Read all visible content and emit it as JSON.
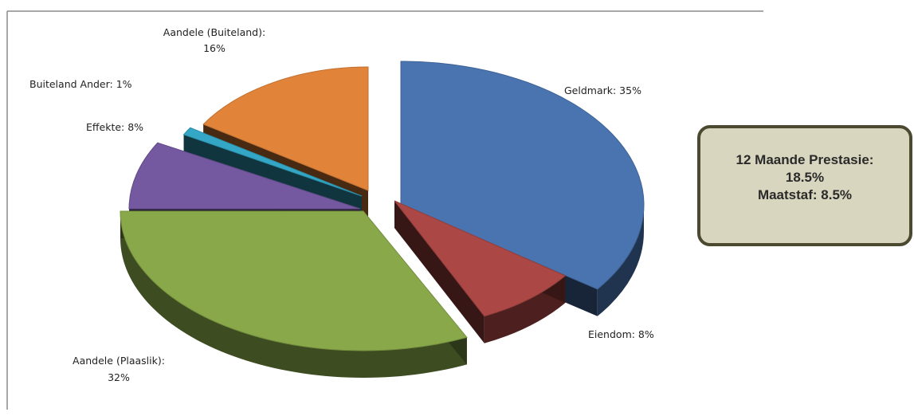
{
  "chart_data": {
    "type": "pie",
    "style": "3d-exploded",
    "slices": [
      {
        "name": "Geldmark",
        "value": 35,
        "label": "Geldmark: 35%",
        "color": "#4a74b0"
      },
      {
        "name": "Eiendom",
        "value": 8,
        "label": "Eiendom: 8%",
        "color": "#ab4845"
      },
      {
        "name": "Aandele (Plaaslik)",
        "value": 32,
        "label": "Aandele (Plaaslik):",
        "label2": "32%",
        "color": "#88a84a"
      },
      {
        "name": "Effekte",
        "value": 8,
        "label": "Effekte: 8%",
        "color": "#7458a0"
      },
      {
        "name": "Buiteland Ander",
        "value": 1,
        "label": "Buiteland Ander: 1%",
        "color": "#33a7c5"
      },
      {
        "name": "Aandele (Buiteland)",
        "value": 16,
        "label": "Aandele (Buiteland):",
        "label2": "16%",
        "color": "#e1843a"
      }
    ]
  },
  "callout": {
    "line1": "12 Maande Prestasie:",
    "line2": "18.5%",
    "line3": "Maatstaf: 8.5%"
  },
  "colors": {
    "callout_fill": "#d9d6bf",
    "callout_border": "#4b4a30",
    "frame": "#808080"
  }
}
